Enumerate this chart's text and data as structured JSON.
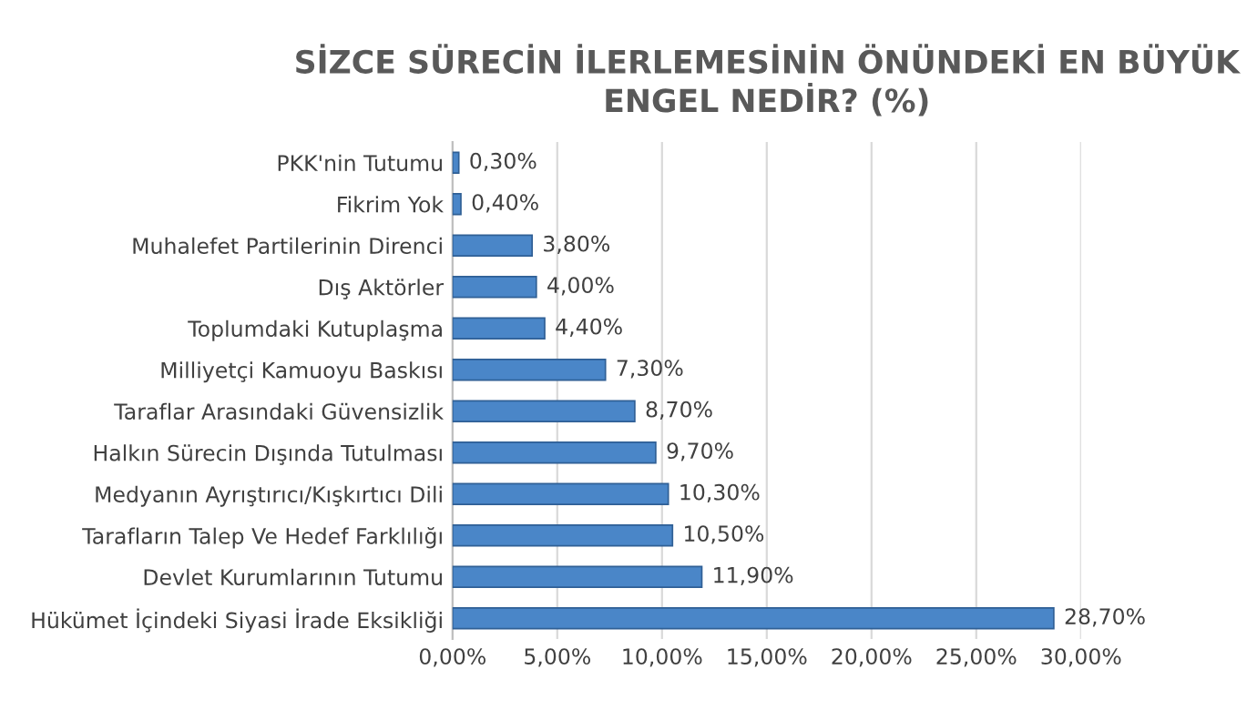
{
  "chart_data": {
    "type": "bar",
    "orientation": "horizontal",
    "title": "SİZCE SÜRECİN İLERLEMESİNİN ÖNÜNDEKİ EN BÜYÜK ENGEL NEDİR? (%)",
    "categories": [
      "PKK'nin Tutumu",
      "Fikrim Yok",
      "Muhalefet Partilerinin Direnci",
      "Dış Aktörler",
      "Toplumdaki Kutuplaşma",
      "Milliyetçi Kamuoyu Baskısı",
      "Taraflar Arasındaki Güvensizlik",
      "Halkın Sürecin Dışında Tutulması",
      "Medyanın Ayrıştırıcı/Kışkırtıcı Dili",
      "Tarafların Talep Ve Hedef Farklılığı",
      "Devlet Kurumlarının Tutumu",
      "Hükümet İçindeki Siyasi İrade Eksikliği"
    ],
    "values": [
      0.3,
      0.4,
      3.8,
      4.0,
      4.4,
      7.3,
      8.7,
      9.7,
      10.3,
      10.5,
      11.9,
      28.7
    ],
    "value_labels": [
      "0,30%",
      "0,40%",
      "3,80%",
      "4,00%",
      "4,40%",
      "7,30%",
      "8,70%",
      "9,70%",
      "10,30%",
      "10,50%",
      "11,90%",
      "28,70%"
    ],
    "color": "#4a86c8",
    "xlim": [
      0,
      30
    ],
    "xticks": [
      {
        "value": 0,
        "label": "0,00%"
      },
      {
        "value": 5,
        "label": "5,00%"
      },
      {
        "value": 10,
        "label": "10,00%"
      },
      {
        "value": 15,
        "label": "15,00%"
      },
      {
        "value": 20,
        "label": "20,00%"
      },
      {
        "value": 25,
        "label": "25,00%"
      },
      {
        "value": 30,
        "label": "30,00%"
      }
    ],
    "grid": "x"
  }
}
